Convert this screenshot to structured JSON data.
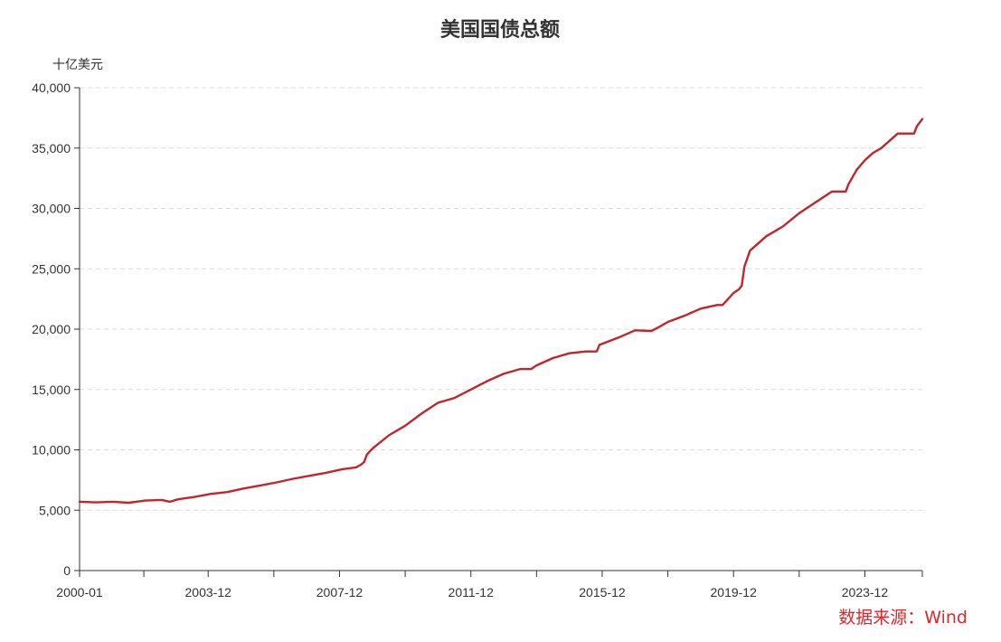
{
  "chart_data": {
    "type": "line",
    "title": "美国国债总额",
    "ylabel": "十亿美元",
    "xlabel": "",
    "ylim": [
      0,
      40000
    ],
    "yticks": [
      0,
      5000,
      10000,
      15000,
      20000,
      25000,
      30000,
      35000,
      40000
    ],
    "ytick_labels": [
      "0",
      "5,000",
      "10,000",
      "15,000",
      "20,000",
      "25,000",
      "30,000",
      "35,000",
      "40,000"
    ],
    "xlim": [
      "2000-01",
      "2025-09"
    ],
    "xtick_labels": [
      "2000-01",
      "2003-12",
      "2007-12",
      "2011-12",
      "2015-12",
      "2019-12",
      "2023-12"
    ],
    "grid": "horizontal-dashed",
    "line_color": "#c0262d",
    "series": [
      {
        "x": [
          "2000-01",
          "2000-07",
          "2001-01",
          "2001-07",
          "2002-01",
          "2002-07",
          "2002-10",
          "2003-01",
          "2003-07",
          "2004-01",
          "2004-07",
          "2005-01",
          "2005-07",
          "2006-01",
          "2006-07",
          "2007-01",
          "2007-07",
          "2008-01",
          "2008-06",
          "2008-08",
          "2008-09",
          "2008-10",
          "2008-12",
          "2009-06",
          "2009-12",
          "2010-06",
          "2010-12",
          "2011-06",
          "2011-12",
          "2012-06",
          "2012-12",
          "2013-06",
          "2013-10",
          "2013-12",
          "2014-06",
          "2014-12",
          "2015-06",
          "2015-10",
          "2015-11",
          "2016-06",
          "2016-12",
          "2017-06",
          "2017-09",
          "2017-12",
          "2018-06",
          "2018-12",
          "2019-06",
          "2019-08",
          "2019-12",
          "2020-02",
          "2020-03",
          "2020-04",
          "2020-06",
          "2020-12",
          "2021-06",
          "2021-12",
          "2022-06",
          "2022-12",
          "2023-05",
          "2023-06",
          "2023-09",
          "2023-12",
          "2024-03",
          "2024-06",
          "2024-09",
          "2024-12",
          "2025-03",
          "2025-06",
          "2025-07",
          "2025-09"
        ],
        "values": [
          5700,
          5650,
          5700,
          5620,
          5800,
          5850,
          5700,
          5900,
          6100,
          6350,
          6500,
          6800,
          7050,
          7300,
          7600,
          7850,
          8100,
          8400,
          8550,
          8800,
          9000,
          9600,
          10100,
          11200,
          12000,
          13000,
          13900,
          14300,
          15000,
          15700,
          16300,
          16700,
          16700,
          17000,
          17600,
          18000,
          18150,
          18150,
          18700,
          19300,
          19900,
          19850,
          20200,
          20600,
          21100,
          21700,
          22000,
          22000,
          23000,
          23300,
          23600,
          25200,
          26500,
          27700,
          28500,
          29600,
          30500,
          31400,
          31400,
          32000,
          33200,
          34000,
          34600,
          35000,
          35600,
          36200,
          36200,
          36200,
          36800,
          37400
        ]
      }
    ],
    "source": "数据来源：Wind"
  }
}
